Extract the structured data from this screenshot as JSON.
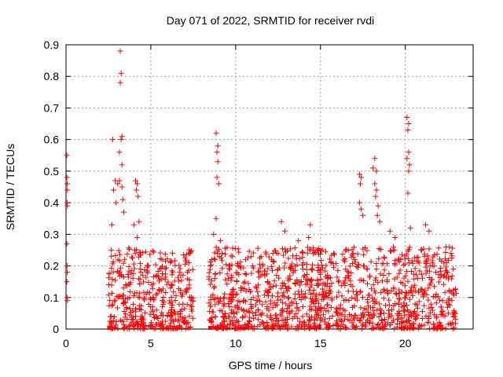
{
  "chart_data": {
    "type": "scatter",
    "title": "Day 071 of 2022, SRMTID for receiver rvdi",
    "xlabel": "GPS time / hours",
    "ylabel": "SRMTID / TECUs",
    "xlim": [
      0,
      24
    ],
    "ylim": [
      0,
      0.9
    ],
    "x_ticks": [
      0,
      5,
      10,
      15,
      20
    ],
    "x_tick_labels": [
      "0",
      "5",
      "10",
      "15",
      "20"
    ],
    "y_ticks": [
      0,
      0.1,
      0.2,
      0.3,
      0.4,
      0.5,
      0.6,
      0.7,
      0.8,
      0.9
    ],
    "y_tick_labels": [
      "0",
      "0.1",
      "0.2",
      "0.3",
      "0.4",
      "0.5",
      "0.6",
      "0.7",
      "0.8",
      "0.9"
    ],
    "grid": true,
    "marker": "+",
    "color": "#ff0000",
    "series": [
      {
        "name": "SRMTID",
        "points": [
          [
            0.05,
            0.55
          ],
          [
            0.05,
            0.48
          ],
          [
            0.07,
            0.46
          ],
          [
            0.08,
            0.44
          ],
          [
            0.06,
            0.4
          ],
          [
            0.08,
            0.39
          ],
          [
            0.05,
            0.27
          ],
          [
            0.06,
            0.2
          ],
          [
            0.07,
            0.18
          ],
          [
            0.05,
            0.15
          ],
          [
            0.06,
            0.1
          ],
          [
            0.08,
            0.09
          ],
          [
            2.75,
            0.6
          ],
          [
            2.9,
            0.47
          ],
          [
            3.05,
            0.46
          ],
          [
            3.2,
            0.88
          ],
          [
            3.25,
            0.81
          ],
          [
            3.2,
            0.78
          ],
          [
            3.3,
            0.61
          ],
          [
            3.25,
            0.6
          ],
          [
            3.15,
            0.56
          ],
          [
            3.3,
            0.52
          ],
          [
            3.15,
            0.47
          ],
          [
            3.3,
            0.45
          ],
          [
            3.35,
            0.41
          ],
          [
            2.8,
            0.44
          ],
          [
            2.95,
            0.4
          ],
          [
            3.4,
            0.37
          ],
          [
            2.7,
            0.33
          ],
          [
            4.1,
            0.47
          ],
          [
            4.2,
            0.46
          ],
          [
            4.15,
            0.44
          ],
          [
            4.25,
            0.42
          ],
          [
            4.3,
            0.34
          ],
          [
            4.0,
            0.33
          ],
          [
            4.2,
            0.29
          ],
          [
            8.85,
            0.62
          ],
          [
            8.95,
            0.58
          ],
          [
            8.9,
            0.56
          ],
          [
            8.95,
            0.53
          ],
          [
            8.9,
            0.48
          ],
          [
            9.0,
            0.46
          ],
          [
            8.85,
            0.35
          ],
          [
            8.7,
            0.3
          ],
          [
            8.6,
            0.22
          ],
          [
            9.1,
            0.28
          ],
          [
            9.2,
            0.24
          ],
          [
            8.5,
            0.2
          ],
          [
            12.7,
            0.34
          ],
          [
            12.9,
            0.31
          ],
          [
            13.7,
            0.28
          ],
          [
            14.4,
            0.33
          ],
          [
            14.3,
            0.29
          ],
          [
            17.3,
            0.49
          ],
          [
            17.4,
            0.48
          ],
          [
            17.35,
            0.46
          ],
          [
            17.3,
            0.4
          ],
          [
            17.4,
            0.38
          ],
          [
            17.5,
            0.36
          ],
          [
            18.2,
            0.54
          ],
          [
            18.1,
            0.51
          ],
          [
            18.3,
            0.5
          ],
          [
            18.2,
            0.46
          ],
          [
            18.3,
            0.44
          ],
          [
            18.25,
            0.42
          ],
          [
            18.4,
            0.39
          ],
          [
            18.35,
            0.36
          ],
          [
            18.5,
            0.34
          ],
          [
            19.1,
            0.31
          ],
          [
            19.4,
            0.29
          ],
          [
            19.3,
            0.26
          ],
          [
            20.1,
            0.67
          ],
          [
            20.2,
            0.65
          ],
          [
            20.15,
            0.63
          ],
          [
            20.2,
            0.56
          ],
          [
            20.1,
            0.54
          ],
          [
            20.25,
            0.52
          ],
          [
            20.2,
            0.5
          ],
          [
            20.15,
            0.43
          ],
          [
            20.3,
            0.32
          ],
          [
            21.2,
            0.33
          ],
          [
            21.4,
            0.31
          ],
          [
            22.6,
            0.26
          ],
          [
            22.7,
            0.24
          ]
        ]
      }
    ],
    "clusters": [
      {
        "x_range": [
          2.5,
          7.5
        ],
        "y_typical": 0.12,
        "y_max": 0.26,
        "count": 420
      },
      {
        "x_range": [
          8.4,
          23.0
        ],
        "y_typical": 0.1,
        "y_max": 0.26,
        "count": 1200
      }
    ],
    "markers_at_zero": [
      2.55,
      8.5
    ]
  }
}
